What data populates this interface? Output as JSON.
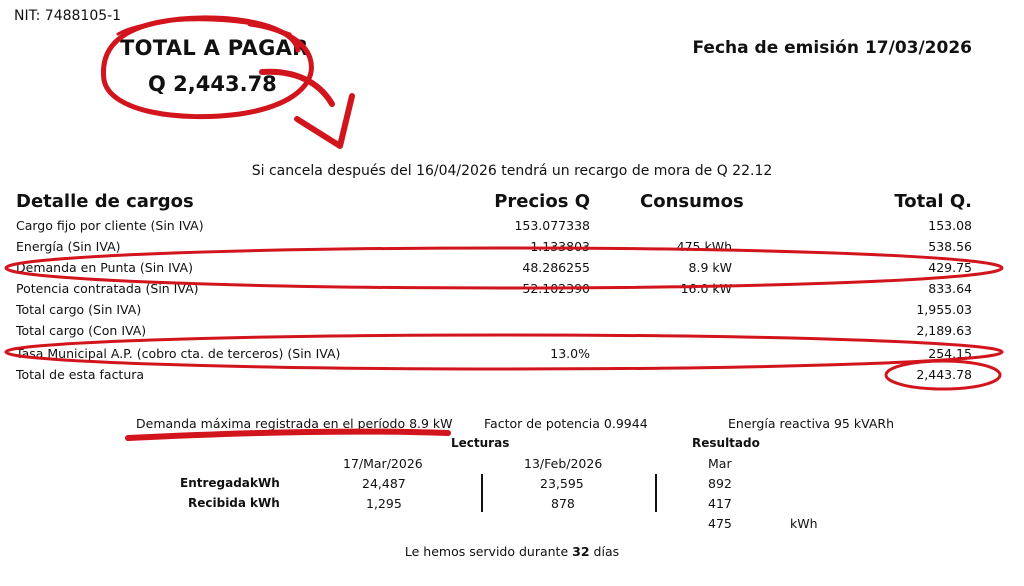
{
  "nit": "NIT: 7488105-1",
  "total_a_pagar": {
    "label": "TOTAL A PAGAR",
    "amount": "Q 2,443.78"
  },
  "fecha_emision": {
    "label": "Fecha de emisión",
    "value": "17/03/2026"
  },
  "recargo_text": "Si cancela después del 16/04/2026 tendrá un recargo de mora de Q 22.12",
  "charges": {
    "headers": {
      "detalle": "Detalle de cargos",
      "precios": "Precios Q",
      "consumos": "Consumos",
      "total": "Total Q."
    },
    "rows": [
      {
        "desc": "Cargo fijo por cliente (Sin IVA)",
        "precio": "153.077338",
        "consumo": "",
        "total": "153.08"
      },
      {
        "desc": "Energía (Sin IVA)",
        "precio": "1.133803",
        "consumo": "475 kWh",
        "total": "538.56"
      },
      {
        "desc": "Demanda en Punta (Sin IVA)",
        "precio": "48.286255",
        "consumo": "8.9 kW",
        "total": "429.75"
      },
      {
        "desc": "Potencia contratada (Sin IVA)",
        "precio": "52.102390",
        "consumo": "16.0 kW",
        "total": "833.64"
      },
      {
        "desc": "Total cargo (Sin IVA)",
        "precio": "",
        "consumo": "",
        "total": "1,955.03"
      },
      {
        "desc": "Total cargo (Con IVA)",
        "precio": "",
        "consumo": "",
        "total": "2,189.63"
      },
      {
        "desc": "Tasa Municipal A.P. (cobro cta. de terceros) (Sin IVA)",
        "precio": "13.0%",
        "consumo": "",
        "total": "254.15"
      },
      {
        "desc": "Total de esta factura",
        "precio": "",
        "consumo": "",
        "total": "2,443.78"
      }
    ]
  },
  "summary": {
    "demanda": "Demanda máxima registrada en el período 8.9 kW",
    "factor": "Factor de potencia 0.9944",
    "reactiva": "Energía reactiva 95 kVARh"
  },
  "lecturas": {
    "label": "Lecturas",
    "resultado_label": "Resultado",
    "date1": "17/Mar/2026",
    "date2": "13/Feb/2026",
    "resultado_header": "Mar",
    "entregada": {
      "label": "Entregada",
      "unit": "kWh",
      "v1": "24,487",
      "v2": "23,595",
      "res": "892"
    },
    "recibida": {
      "label": "Recibida",
      "unit": "kWh",
      "v1": "1,295",
      "v2": "878",
      "res": "417"
    },
    "net": {
      "res": "475",
      "unit": "kWh"
    }
  },
  "servido": {
    "prefix": "Le hemos servido durante",
    "days": "32",
    "suffix": "días"
  },
  "annotation_color": "#d2141c"
}
